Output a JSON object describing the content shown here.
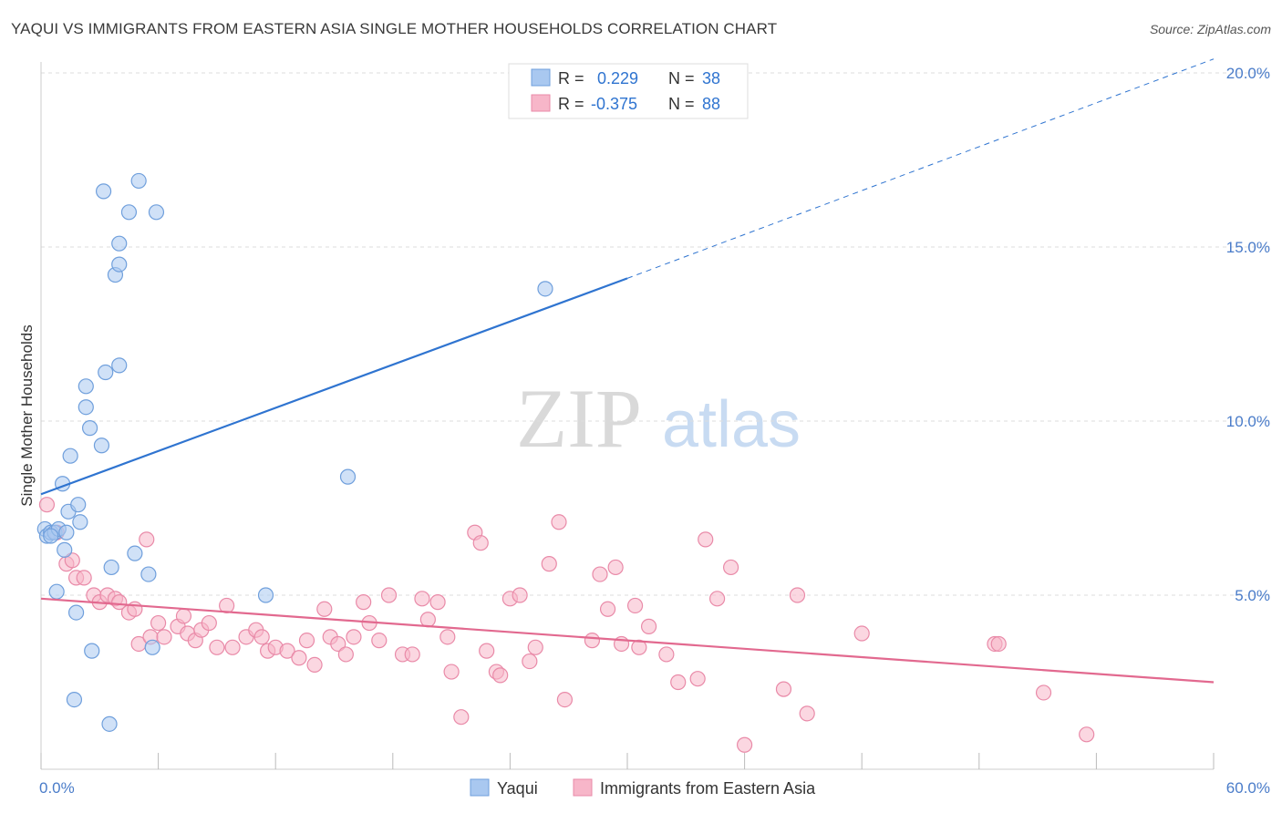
{
  "title": "YAQUI VS IMMIGRANTS FROM EASTERN ASIA SINGLE MOTHER HOUSEHOLDS CORRELATION CHART",
  "source": "Source: ZipAtlas.com",
  "watermark": {
    "zip": "ZIP",
    "atlas": "atlas"
  },
  "colors": {
    "blue_fill": "#a9c8f0",
    "blue_stroke": "#6f9fdc",
    "blue_line": "#2f74d0",
    "pink_fill": "#f7b6c9",
    "pink_stroke": "#e98aa8",
    "pink_line": "#e2698f",
    "tick_color": "#4a7cc9",
    "grid": "#dddddd"
  },
  "top_legend": [
    {
      "r_label": "R = ",
      "r_value": "0.229",
      "n_label": "N = ",
      "n_value": "38"
    },
    {
      "r_label": "R = ",
      "r_value": "-0.375",
      "n_label": "N = ",
      "n_value": "88"
    }
  ],
  "chart_data": {
    "type": "scatter",
    "title": "YAQUI VS IMMIGRANTS FROM EASTERN ASIA SINGLE MOTHER HOUSEHOLDS CORRELATION CHART",
    "xlabel": "",
    "ylabel": "Single Mother Households",
    "xlim": [
      0,
      60
    ],
    "ylim": [
      0,
      20
    ],
    "x_tick_labels": [
      "0.0%",
      "60.0%"
    ],
    "y_tick_labels": [
      "5.0%",
      "10.0%",
      "15.0%",
      "20.0%"
    ],
    "y_ticks": [
      5,
      10,
      15,
      20
    ],
    "grid": true,
    "legend_position": "bottom",
    "series": [
      {
        "name": "Yaqui",
        "color": "#a9c8f0",
        "points": [
          [
            0.2,
            6.9
          ],
          [
            0.3,
            6.7
          ],
          [
            0.5,
            6.8
          ],
          [
            0.7,
            6.8
          ],
          [
            0.9,
            6.9
          ],
          [
            1.1,
            8.2
          ],
          [
            1.2,
            6.3
          ],
          [
            1.3,
            6.8
          ],
          [
            0.8,
            5.1
          ],
          [
            1.5,
            9.0
          ],
          [
            1.4,
            7.4
          ],
          [
            1.9,
            7.6
          ],
          [
            2.0,
            7.1
          ],
          [
            2.3,
            11.0
          ],
          [
            2.3,
            10.4
          ],
          [
            2.5,
            9.8
          ],
          [
            2.6,
            3.4
          ],
          [
            3.1,
            9.3
          ],
          [
            3.3,
            11.4
          ],
          [
            4.0,
            11.6
          ],
          [
            3.8,
            14.2
          ],
          [
            4.0,
            14.5
          ],
          [
            3.2,
            16.6
          ],
          [
            4.0,
            15.1
          ],
          [
            4.5,
            16.0
          ],
          [
            5.0,
            16.9
          ],
          [
            5.9,
            16.0
          ],
          [
            4.8,
            6.2
          ],
          [
            5.5,
            5.6
          ],
          [
            5.7,
            3.5
          ],
          [
            3.6,
            5.8
          ],
          [
            1.8,
            4.5
          ],
          [
            1.7,
            2.0
          ],
          [
            3.5,
            1.3
          ],
          [
            11.5,
            5.0
          ],
          [
            15.7,
            8.4
          ],
          [
            25.8,
            13.8
          ],
          [
            0.5,
            6.7
          ]
        ],
        "trend": {
          "x": [
            0,
            30
          ],
          "y": [
            7.9,
            14.1
          ],
          "dashed_to": [
            60,
            20.4
          ]
        }
      },
      {
        "name": "Immigrants from Eastern Asia",
        "color": "#f7b6c9",
        "points": [
          [
            0.3,
            7.6
          ],
          [
            0.8,
            6.8
          ],
          [
            1.3,
            5.9
          ],
          [
            1.6,
            6.0
          ],
          [
            1.8,
            5.5
          ],
          [
            2.2,
            5.5
          ],
          [
            2.7,
            5.0
          ],
          [
            3.0,
            4.8
          ],
          [
            3.4,
            5.0
          ],
          [
            3.8,
            4.9
          ],
          [
            4.0,
            4.8
          ],
          [
            4.5,
            4.5
          ],
          [
            4.8,
            4.6
          ],
          [
            5.0,
            3.6
          ],
          [
            5.4,
            6.6
          ],
          [
            5.6,
            3.8
          ],
          [
            6.0,
            4.2
          ],
          [
            6.3,
            3.8
          ],
          [
            7.0,
            4.1
          ],
          [
            7.3,
            4.4
          ],
          [
            7.5,
            3.9
          ],
          [
            7.9,
            3.7
          ],
          [
            8.2,
            4.0
          ],
          [
            8.6,
            4.2
          ],
          [
            9.0,
            3.5
          ],
          [
            9.5,
            4.7
          ],
          [
            9.8,
            3.5
          ],
          [
            10.5,
            3.8
          ],
          [
            11.0,
            4.0
          ],
          [
            11.3,
            3.8
          ],
          [
            11.6,
            3.4
          ],
          [
            12.0,
            3.5
          ],
          [
            12.6,
            3.4
          ],
          [
            13.2,
            3.2
          ],
          [
            13.6,
            3.7
          ],
          [
            14.0,
            3.0
          ],
          [
            14.5,
            4.6
          ],
          [
            14.8,
            3.8
          ],
          [
            15.2,
            3.6
          ],
          [
            15.6,
            3.3
          ],
          [
            16.0,
            3.8
          ],
          [
            16.5,
            4.8
          ],
          [
            16.8,
            4.2
          ],
          [
            17.3,
            3.7
          ],
          [
            17.8,
            5.0
          ],
          [
            18.5,
            3.3
          ],
          [
            19.0,
            3.3
          ],
          [
            19.5,
            4.9
          ],
          [
            19.8,
            4.3
          ],
          [
            20.3,
            4.8
          ],
          [
            20.8,
            3.8
          ],
          [
            21.0,
            2.8
          ],
          [
            21.5,
            1.5
          ],
          [
            22.2,
            6.8
          ],
          [
            22.5,
            6.5
          ],
          [
            22.8,
            3.4
          ],
          [
            23.3,
            2.8
          ],
          [
            23.5,
            2.7
          ],
          [
            24.0,
            4.9
          ],
          [
            24.5,
            5.0
          ],
          [
            25.0,
            3.1
          ],
          [
            25.3,
            3.5
          ],
          [
            26.0,
            5.9
          ],
          [
            26.5,
            7.1
          ],
          [
            26.8,
            2.0
          ],
          [
            28.2,
            3.7
          ],
          [
            28.6,
            5.6
          ],
          [
            29.0,
            4.6
          ],
          [
            29.4,
            5.8
          ],
          [
            29.7,
            3.6
          ],
          [
            30.4,
            4.7
          ],
          [
            30.6,
            3.5
          ],
          [
            31.1,
            4.1
          ],
          [
            32.0,
            3.3
          ],
          [
            32.6,
            2.5
          ],
          [
            33.6,
            2.6
          ],
          [
            34.0,
            6.6
          ],
          [
            34.6,
            4.9
          ],
          [
            35.3,
            5.8
          ],
          [
            36.0,
            0.7
          ],
          [
            38.0,
            2.3
          ],
          [
            38.7,
            5.0
          ],
          [
            39.2,
            1.6
          ],
          [
            42.0,
            3.9
          ],
          [
            48.8,
            3.6
          ],
          [
            49.0,
            3.6
          ],
          [
            51.3,
            2.2
          ],
          [
            53.5,
            1.0
          ]
        ],
        "trend": {
          "x": [
            0,
            60
          ],
          "y": [
            4.9,
            2.5
          ]
        }
      }
    ]
  }
}
